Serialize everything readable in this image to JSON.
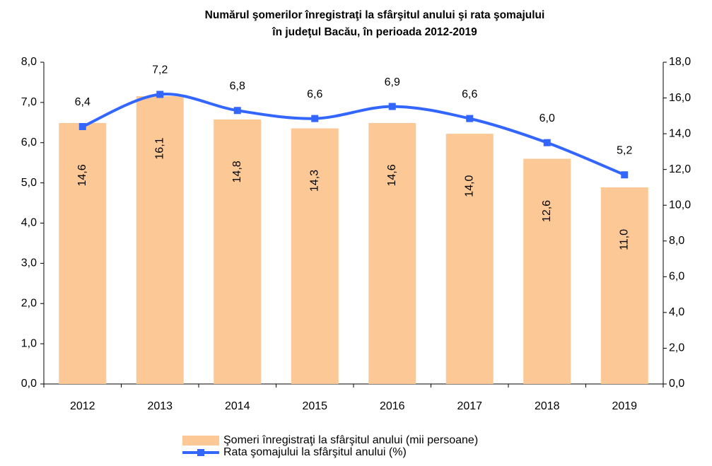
{
  "chart_data": {
    "type": "bar_line",
    "title": [
      "Numărul şomerilor înregistraţi la sfârşitul anului şi rata şomajului",
      "în judeţul Bacău, în perioada 2012-2019"
    ],
    "categories": [
      "2012",
      "2013",
      "2014",
      "2015",
      "2016",
      "2017",
      "2018",
      "2019"
    ],
    "series": [
      {
        "name": "Şomeri înregistraţi la sfârşitul anului (mii persoane)",
        "type": "bar",
        "axis": "y2",
        "color": "#fcc996",
        "values": [
          14.6,
          16.1,
          14.8,
          14.3,
          14.6,
          14.0,
          12.6,
          11.0
        ],
        "value_labels": [
          "14,6",
          "16,1",
          "14,8",
          "14,3",
          "14,6",
          "14,0",
          "12,6",
          "11,0"
        ]
      },
      {
        "name": "Rata şomajului la sfârşitul anului (%)",
        "type": "line",
        "axis": "y",
        "color": "#3366ff",
        "values": [
          6.4,
          7.2,
          6.8,
          6.6,
          6.9,
          6.6,
          6.0,
          5.2
        ],
        "value_labels": [
          "6,4",
          "7,2",
          "6,8",
          "6,6",
          "6,9",
          "6,6",
          "6,0",
          "5,2"
        ]
      }
    ],
    "ylim": [
      0,
      8
    ],
    "yticks": [
      {
        "value": 0,
        "label": "0,0"
      },
      {
        "value": 1,
        "label": "1,0"
      },
      {
        "value": 2,
        "label": "2,0"
      },
      {
        "value": 3,
        "label": "3,0"
      },
      {
        "value": 4,
        "label": "4,0"
      },
      {
        "value": 5,
        "label": "5,0"
      },
      {
        "value": 6,
        "label": "6,0"
      },
      {
        "value": 7,
        "label": "7,0"
      },
      {
        "value": 8,
        "label": "8,0"
      }
    ],
    "y2lim": [
      0,
      18
    ],
    "y2ticks": [
      {
        "value": 0,
        "label": "0,0"
      },
      {
        "value": 2,
        "label": "2,0"
      },
      {
        "value": 4,
        "label": "4,0"
      },
      {
        "value": 6,
        "label": "6,0"
      },
      {
        "value": 8,
        "label": "8,0"
      },
      {
        "value": 10,
        "label": "10,0"
      },
      {
        "value": 12,
        "label": "12,0"
      },
      {
        "value": 14,
        "label": "14,0"
      },
      {
        "value": 16,
        "label": "16,0"
      },
      {
        "value": 18,
        "label": "18,0"
      }
    ],
    "legend": "bottom"
  }
}
